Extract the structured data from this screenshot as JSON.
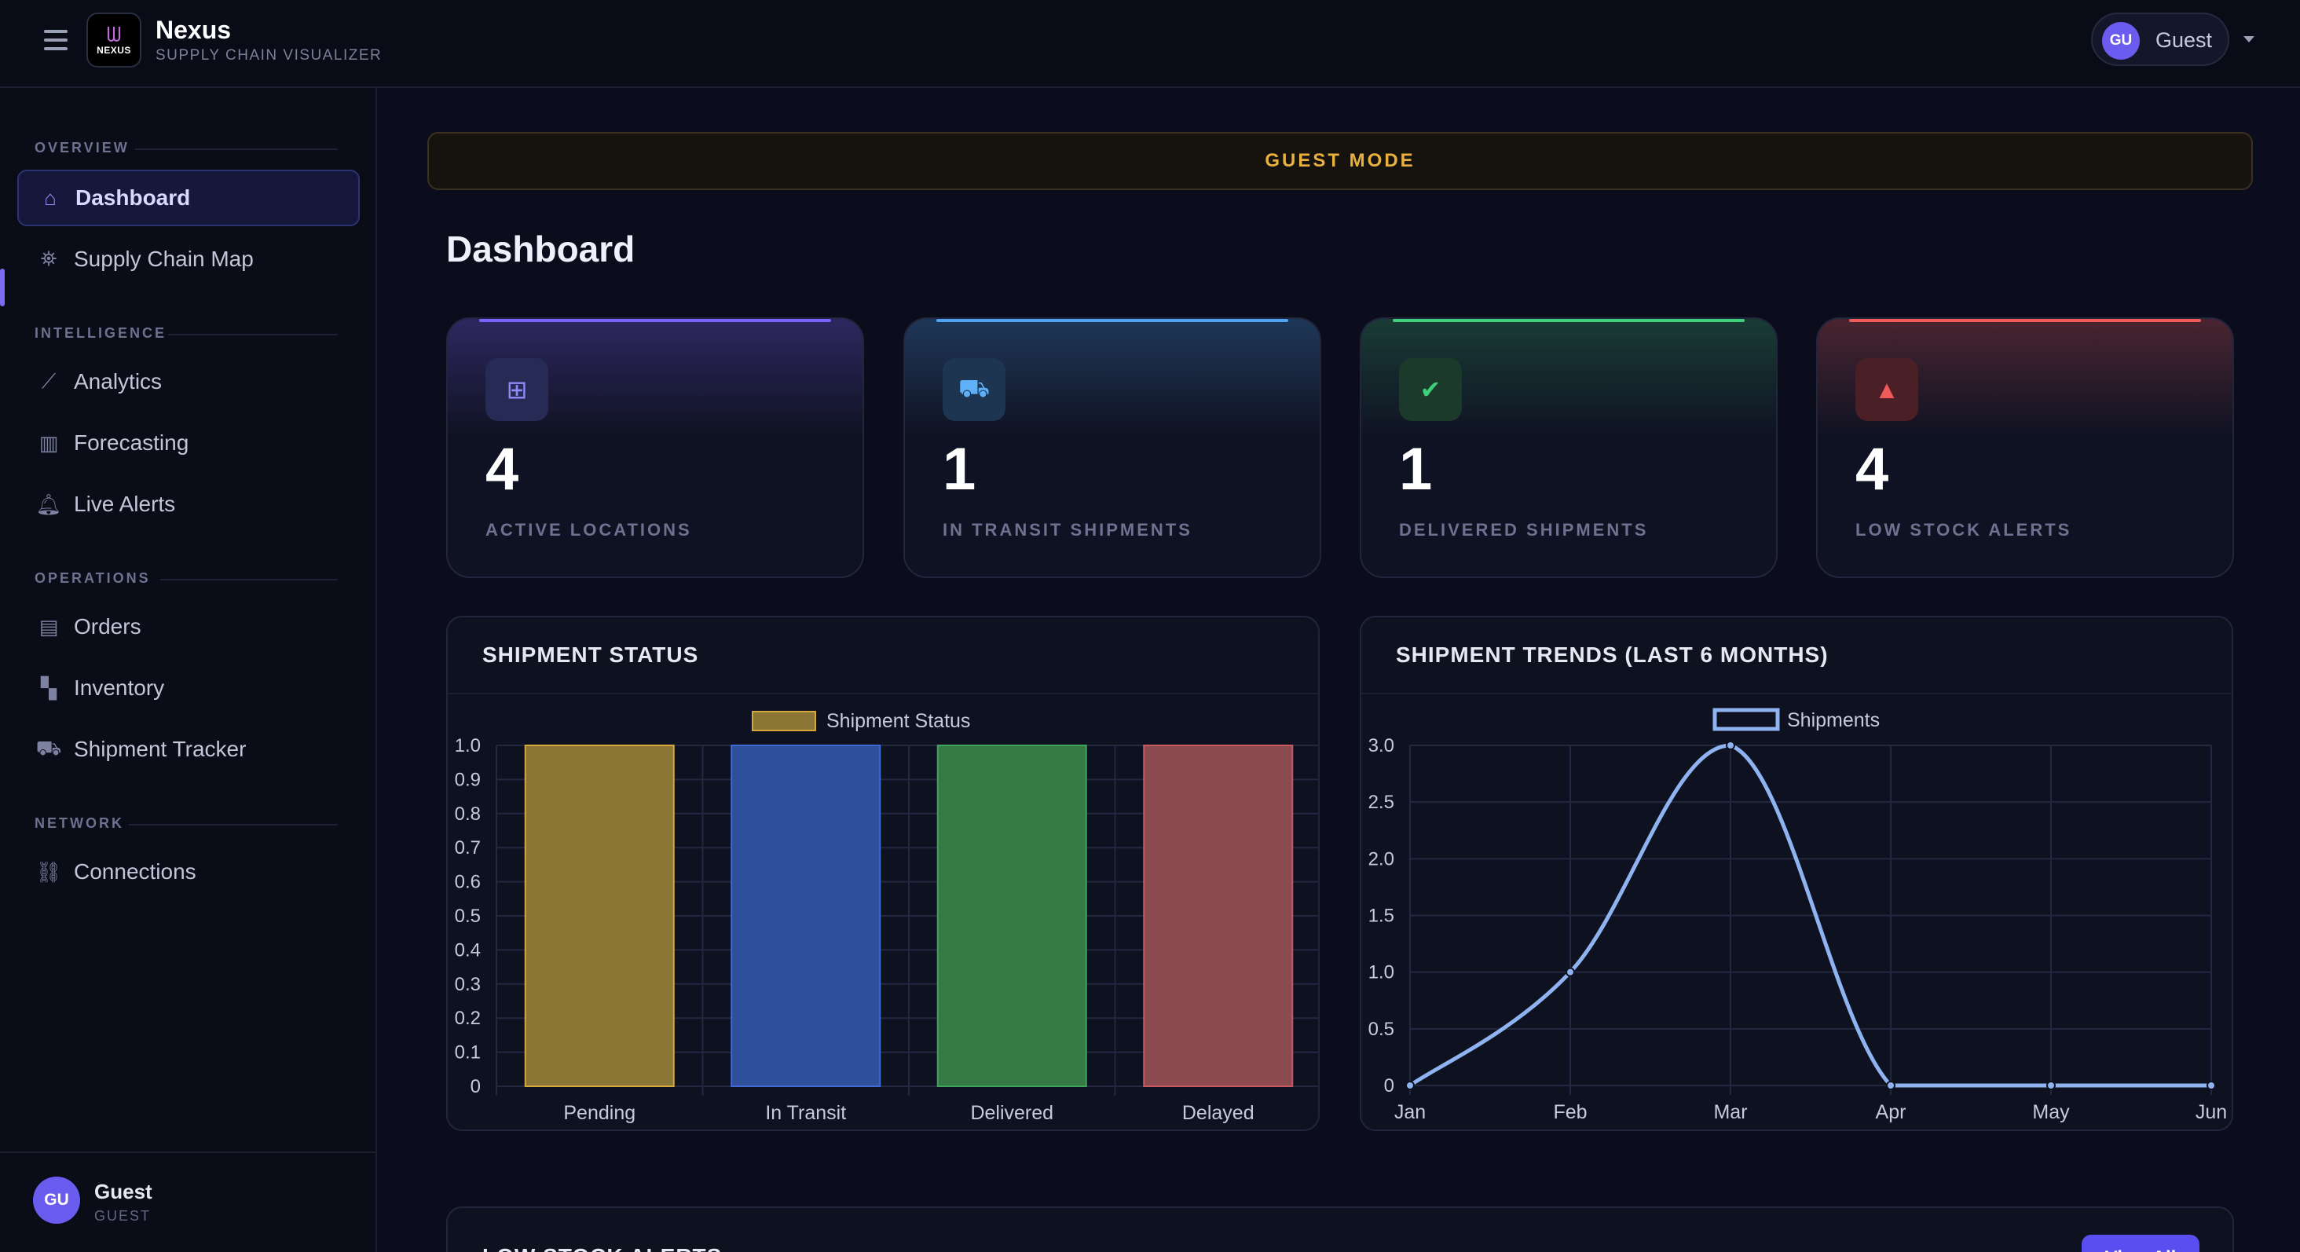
{
  "app": {
    "name": "Nexus",
    "subtitle": "SUPPLY CHAIN VISUALIZER",
    "logo_text": "NEXUS"
  },
  "header": {
    "user_initials": "GU",
    "user_name": "Guest"
  },
  "sidebar": {
    "sections": [
      {
        "title": "OVERVIEW",
        "items": [
          {
            "label": "Dashboard",
            "icon": "home-icon",
            "active": true
          },
          {
            "label": "Supply Chain Map",
            "icon": "map-icon"
          }
        ]
      },
      {
        "title": "INTELLIGENCE",
        "items": [
          {
            "label": "Analytics",
            "icon": "chart-line-icon"
          },
          {
            "label": "Forecasting",
            "icon": "chart-bar-icon"
          },
          {
            "label": "Live Alerts",
            "icon": "bell-icon"
          }
        ]
      },
      {
        "title": "OPERATIONS",
        "items": [
          {
            "label": "Orders",
            "icon": "clipboard-icon"
          },
          {
            "label": "Inventory",
            "icon": "boxes-icon"
          },
          {
            "label": "Shipment Tracker",
            "icon": "truck-icon"
          }
        ]
      },
      {
        "title": "NETWORK",
        "items": [
          {
            "label": "Connections",
            "icon": "link-icon"
          }
        ]
      }
    ],
    "footer": {
      "initials": "GU",
      "name": "Guest",
      "role": "GUEST"
    }
  },
  "banner": "GUEST MODE",
  "page_title": "Dashboard",
  "stats": [
    {
      "value": "4",
      "label": "ACTIVE LOCATIONS",
      "icon": "network-icon",
      "color": "#7b61ff"
    },
    {
      "value": "1",
      "label": "IN TRANSIT SHIPMENTS",
      "icon": "truck-icon",
      "color": "#4ea3f5"
    },
    {
      "value": "1",
      "label": "DELIVERED SHIPMENTS",
      "icon": "check-circle-icon",
      "color": "#3ecf7a"
    },
    {
      "value": "4",
      "label": "LOW STOCK ALERTS",
      "icon": "warning-icon",
      "color": "#f05a5a"
    }
  ],
  "chart_data": [
    {
      "type": "bar",
      "title": "SHIPMENT STATUS",
      "categories": [
        "Pending",
        "In Transit",
        "Delivered",
        "Delayed"
      ],
      "series": [
        {
          "name": "Shipment Status",
          "values": [
            1,
            1,
            1,
            1
          ]
        }
      ],
      "colors": [
        "#8a7534",
        "#2f4f9a",
        "#357a45",
        "#8a4a50"
      ],
      "border_colors": [
        "#d4a83a",
        "#3f6ad8",
        "#3fa55a",
        "#c95860"
      ],
      "ylim": [
        0,
        1.0
      ],
      "yticks": [
        "0",
        "0.1",
        "0.2",
        "0.3",
        "0.4",
        "0.5",
        "0.6",
        "0.7",
        "0.8",
        "0.9",
        "1.0"
      ],
      "legend": "top-center",
      "grid": true
    },
    {
      "type": "line",
      "title": "SHIPMENT TRENDS (LAST 6 MONTHS)",
      "x": [
        "Jan",
        "Feb",
        "Mar",
        "Apr",
        "May",
        "Jun"
      ],
      "series": [
        {
          "name": "Shipments",
          "values": [
            0,
            1,
            3,
            0,
            0,
            0
          ]
        }
      ],
      "color": "#8fb3f0",
      "ylim": [
        0,
        3.0
      ],
      "yticks": [
        "0",
        "0.5",
        "1.0",
        "1.5",
        "2.0",
        "2.5",
        "3.0"
      ],
      "legend": "top-center",
      "grid": true
    }
  ],
  "low_stock": {
    "title": "LOW STOCK ALERTS",
    "button": "View All"
  }
}
